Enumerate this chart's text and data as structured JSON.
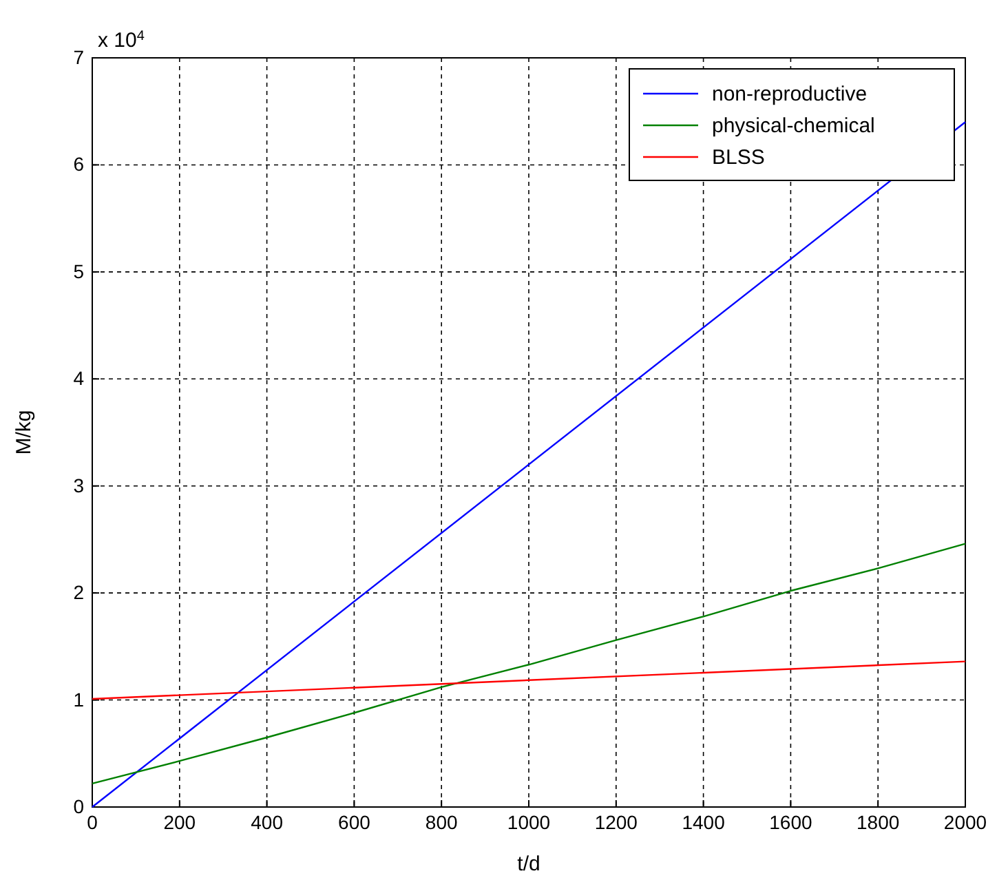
{
  "chart_data": {
    "type": "line",
    "xlabel": "t/d",
    "ylabel": "M/kg",
    "annotations": [
      "x 10$^{4}$"
    ],
    "xlim": [
      0,
      2000
    ],
    "xticks": [
      0,
      200,
      400,
      600,
      800,
      1000,
      1200,
      1400,
      1600,
      1800,
      2000
    ],
    "ylim": [
      0,
      7
    ],
    "yticks": [
      0,
      1,
      2,
      3,
      4,
      5,
      6,
      7
    ],
    "grid": true,
    "legend": "top right",
    "line_style": "solid",
    "series": [
      {
        "name": "non-reproductive",
        "color": "#0000ff",
        "x": [
          0,
          2000
        ],
        "values": [
          0,
          6.4
        ]
      },
      {
        "name": "physical-chemical",
        "color": "#008000",
        "x": [
          0,
          200,
          400,
          600,
          800,
          1000,
          1200,
          1400,
          1600,
          1800,
          2000
        ],
        "values": [
          0.22,
          0.43,
          0.65,
          0.88,
          1.12,
          1.33,
          1.56,
          1.78,
          2.02,
          2.23,
          2.46
        ]
      },
      {
        "name": "BLSS",
        "color": "#ff0000",
        "x": [
          0,
          2000
        ],
        "values": [
          1.01,
          1.36
        ]
      }
    ]
  }
}
